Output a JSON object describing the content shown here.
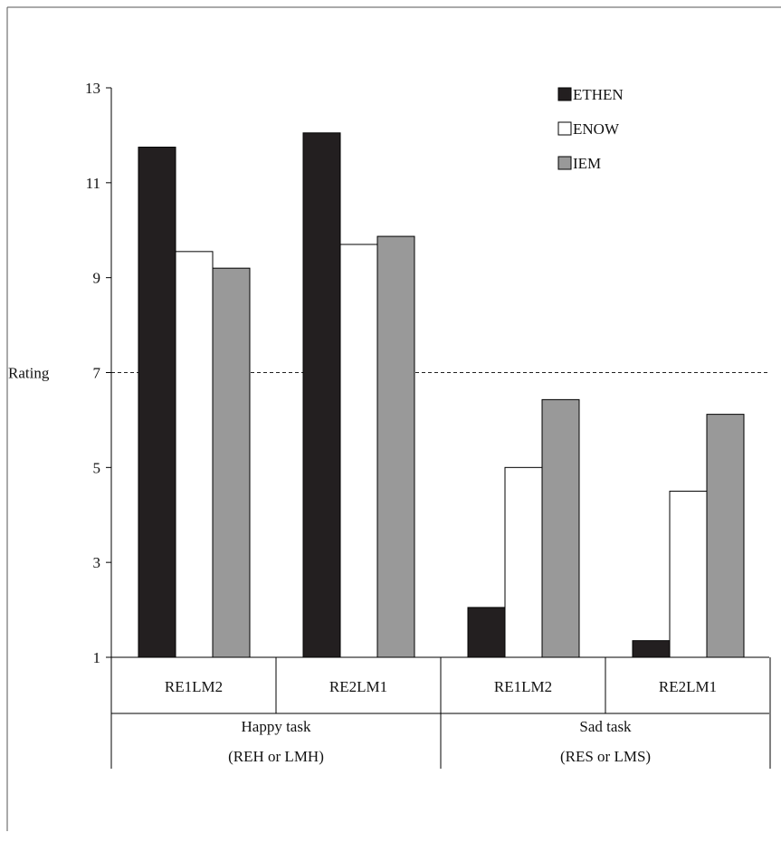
{
  "chart_data": {
    "type": "bar",
    "title": "",
    "ylabel": "Rating",
    "xlabel": "",
    "ylim": [
      1,
      13
    ],
    "yticks": [
      1,
      3,
      5,
      7,
      9,
      11,
      13
    ],
    "reference_line": 7,
    "categories": [
      "RE1LM2",
      "RE2LM1",
      "RE1LM2",
      "RE2LM1"
    ],
    "groups": [
      {
        "label": "Happy task",
        "sublabel": "(REH or LMH)"
      },
      {
        "label": "Sad task",
        "sublabel": "(RES or LMS)"
      }
    ],
    "series": [
      {
        "name": "ETHEN",
        "color": "#231f20",
        "values": [
          11.75,
          12.05,
          2.05,
          1.35
        ]
      },
      {
        "name": "ENOW",
        "color": "#ffffff",
        "values": [
          9.55,
          9.7,
          5.0,
          4.5
        ]
      },
      {
        "name": "IEM",
        "color": "#999999",
        "values": [
          9.2,
          9.87,
          6.43,
          6.12
        ]
      }
    ],
    "legend": "top-right",
    "grid": false
  }
}
